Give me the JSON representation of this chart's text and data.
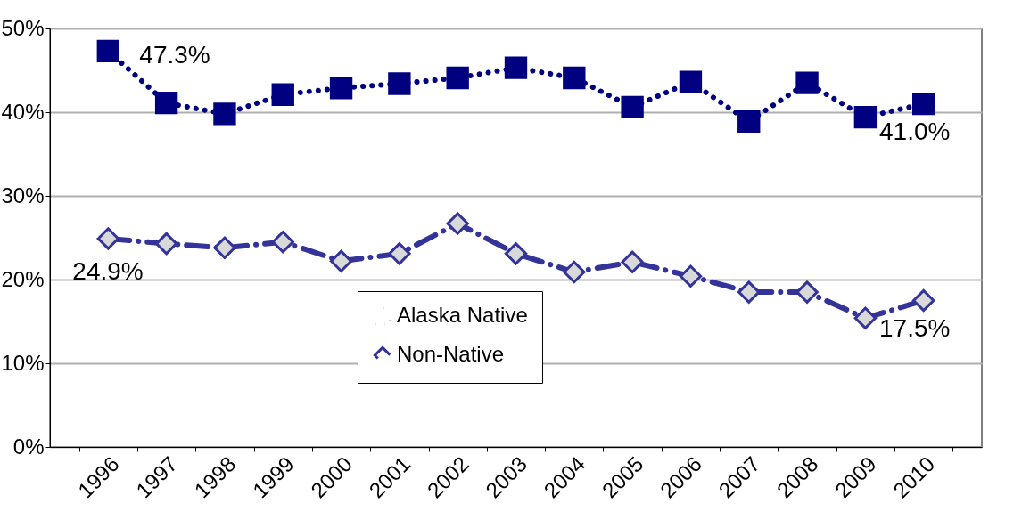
{
  "chart_data": {
    "type": "line",
    "categories": [
      "1996",
      "1997",
      "1998",
      "1999",
      "2000",
      "2001",
      "2002",
      "2003",
      "2004",
      "2005",
      "2006",
      "2007",
      "2008",
      "2009",
      "2010"
    ],
    "series": [
      {
        "name": "Alaska Native",
        "color": "#000080",
        "marker": "square",
        "line_style": "dotted",
        "values": [
          47.3,
          41.1,
          39.8,
          42.1,
          42.9,
          43.4,
          44.1,
          45.3,
          44.1,
          40.6,
          43.6,
          38.9,
          43.5,
          39.4,
          41.0
        ],
        "value_labels": [
          "47.3%",
          null,
          null,
          null,
          null,
          null,
          null,
          null,
          null,
          null,
          null,
          null,
          null,
          null,
          "41.0%"
        ]
      },
      {
        "name": "Non-Native",
        "color": "#333399",
        "marker": "diamond",
        "line_style": "dashed",
        "values": [
          24.9,
          24.3,
          23.8,
          24.5,
          22.2,
          23.1,
          26.7,
          23.1,
          20.9,
          22.1,
          20.4,
          18.5,
          18.5,
          15.4,
          17.5
        ],
        "value_labels": [
          "24.9%",
          null,
          null,
          null,
          null,
          null,
          null,
          null,
          null,
          null,
          null,
          null,
          null,
          null,
          "17.5%"
        ]
      }
    ],
    "ylim": [
      0,
      50
    ],
    "yticks": [
      {
        "value": 0,
        "label": "0%"
      },
      {
        "value": 10,
        "label": "10%"
      },
      {
        "value": 20,
        "label": "20%"
      },
      {
        "value": 30,
        "label": "30%"
      },
      {
        "value": 40,
        "label": "40%"
      },
      {
        "value": 50,
        "label": "50%"
      }
    ],
    "grid": "y",
    "legend": "bottom"
  }
}
